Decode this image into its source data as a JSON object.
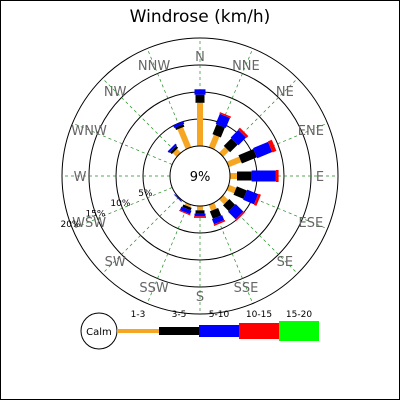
{
  "chart_data": {
    "type": "windrose",
    "title": "Windrose (km/h)",
    "calm_label": "9%",
    "ring_labels": [
      "5%",
      "10%",
      "15%",
      "20%"
    ],
    "directions": [
      "N",
      "NNE",
      "NE",
      "ENE",
      "E",
      "ESE",
      "SE",
      "SSE",
      "S",
      "SSW",
      "SW",
      "WSW",
      "W",
      "WNW",
      "NW",
      "NNW"
    ],
    "legend_calm": "Calm",
    "speed_bins": [
      {
        "label": "1-3",
        "color": "#f5a623"
      },
      {
        "label": "3-5",
        "color": "#000000"
      },
      {
        "label": "5-10",
        "color": "#0000ff"
      },
      {
        "label": "10-15",
        "color": "#ff0000"
      },
      {
        "label": "15-20",
        "color": "#00ff00"
      }
    ],
    "frequencies_percent": {
      "N": [
        8.0,
        1.5,
        1.0,
        0.0,
        0.0
      ],
      "NNE": [
        2.5,
        2.0,
        2.0,
        0.3,
        0.0
      ],
      "NE": [
        1.5,
        2.0,
        2.0,
        0.5,
        0.0
      ],
      "ENE": [
        2.5,
        3.0,
        3.0,
        0.8,
        0.0
      ],
      "E": [
        1.3,
        2.7,
        4.5,
        0.5,
        0.0
      ],
      "ESE": [
        1.5,
        2.0,
        2.2,
        0.5,
        0.0
      ],
      "SE": [
        1.3,
        1.5,
        2.0,
        0.3,
        0.0
      ],
      "SSE": [
        1.2,
        1.5,
        1.0,
        0.3,
        0.0
      ],
      "S": [
        0.8,
        0.6,
        0.5,
        0.3,
        0.0
      ],
      "SSW": [
        0.5,
        0.5,
        0.7,
        0.2,
        0.0
      ],
      "SW": [
        0.1,
        0.1,
        0.1,
        0.0,
        0.0
      ],
      "WSW": [
        0.0,
        0.0,
        0.0,
        0.0,
        0.0
      ],
      "W": [
        0.0,
        0.0,
        0.0,
        0.0,
        0.0
      ],
      "WNW": [
        0.0,
        0.0,
        0.0,
        0.0,
        0.0
      ],
      "NW": [
        1.0,
        0.5,
        0.4,
        0.0,
        0.0
      ],
      "NNW": [
        4.0,
        0.5,
        0.5,
        0.0,
        0.0
      ]
    }
  }
}
